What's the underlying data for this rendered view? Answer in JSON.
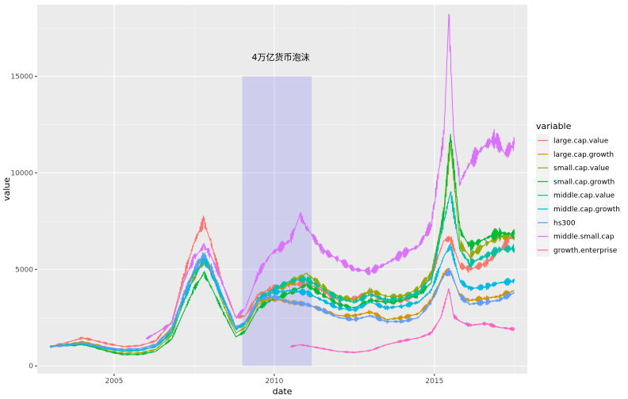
{
  "chart_data": {
    "type": "line",
    "xlabel": "date",
    "ylabel": "value",
    "xlim": [
      2002.6,
      2017.9
    ],
    "ylim": [
      -400,
      18700
    ],
    "x_ticks": [
      2005,
      2010,
      2015
    ],
    "x_tick_labels": [
      "2005",
      "2010",
      "2015"
    ],
    "y_ticks": [
      0,
      5000,
      10000,
      15000
    ],
    "y_tick_labels": [
      "0",
      "5000",
      "10000",
      "15000"
    ],
    "grid": true,
    "legend": {
      "title": "variable",
      "position": "right"
    },
    "annotation": {
      "text": "4万亿货币泡沫",
      "x": 2010.2,
      "y": 16000,
      "rect": {
        "x0": 2009.0,
        "x1": 2011.17,
        "y0": 0,
        "y1": 15000,
        "color": "#5b5bef"
      }
    },
    "series": [
      {
        "name": "large.cap.value",
        "color": "#F8766D",
        "x": [
          2003.0,
          2003.5,
          2004.0,
          2004.3,
          2004.8,
          2005.3,
          2005.8,
          2006.3,
          2006.8,
          2007.2,
          2007.5,
          2007.8,
          2008.0,
          2008.4,
          2008.8,
          2009.1,
          2009.5,
          2009.9,
          2010.5,
          2011.0,
          2011.5,
          2012.0,
          2012.5,
          2013.0,
          2013.5,
          2014.0,
          2014.5,
          2014.9,
          2015.3,
          2015.5,
          2015.8,
          2016.1,
          2016.6,
          2017.0,
          2017.5
        ],
        "y": [
          1000,
          1200,
          1450,
          1350,
          1150,
          1000,
          1050,
          1300,
          2300,
          4800,
          6400,
          7500,
          6500,
          4200,
          2500,
          2600,
          3700,
          4000,
          4200,
          4300,
          3900,
          3400,
          3500,
          3800,
          3300,
          3400,
          3700,
          4700,
          6500,
          6600,
          5200,
          5000,
          5300,
          5900,
          6900
        ]
      },
      {
        "name": "large.cap.growth",
        "color": "#D39200",
        "x": [
          2003.0,
          2003.5,
          2004.0,
          2004.3,
          2004.8,
          2005.3,
          2005.8,
          2006.3,
          2006.8,
          2007.2,
          2007.5,
          2007.8,
          2008.0,
          2008.4,
          2008.8,
          2009.1,
          2009.5,
          2009.9,
          2010.5,
          2011.0,
          2011.5,
          2012.0,
          2012.5,
          2013.0,
          2013.5,
          2014.0,
          2014.5,
          2014.9,
          2015.3,
          2015.5,
          2015.8,
          2016.1,
          2016.6,
          2017.0,
          2017.5
        ],
        "y": [
          1000,
          1100,
          1250,
          1150,
          950,
          850,
          900,
          1100,
          1900,
          3700,
          4800,
          5400,
          5000,
          3500,
          2000,
          2200,
          3200,
          3500,
          3300,
          3200,
          2900,
          2600,
          2600,
          2800,
          2400,
          2500,
          2700,
          3400,
          4800,
          4900,
          3600,
          3400,
          3500,
          3600,
          3900
        ]
      },
      {
        "name": "small.cap.value",
        "color": "#93AA00",
        "x": [
          2003.0,
          2003.5,
          2004.0,
          2004.3,
          2004.8,
          2005.3,
          2005.8,
          2006.3,
          2006.8,
          2007.2,
          2007.5,
          2007.8,
          2008.0,
          2008.4,
          2008.8,
          2009.1,
          2009.5,
          2009.9,
          2010.5,
          2011.0,
          2011.5,
          2012.0,
          2012.5,
          2013.0,
          2013.5,
          2014.0,
          2014.5,
          2014.9,
          2015.3,
          2015.5,
          2015.8,
          2016.1,
          2016.6,
          2017.0,
          2017.5
        ],
        "y": [
          1000,
          1080,
          1150,
          1050,
          800,
          650,
          680,
          850,
          1600,
          3500,
          4600,
          5600,
          5000,
          3200,
          1700,
          2000,
          3300,
          3800,
          4300,
          4800,
          4100,
          3600,
          3400,
          3900,
          3600,
          3600,
          4000,
          4800,
          8000,
          11500,
          6300,
          5700,
          6300,
          6700,
          6700
        ]
      },
      {
        "name": "small.cap.growth",
        "color": "#00BA38",
        "x": [
          2003.0,
          2003.5,
          2004.0,
          2004.3,
          2004.8,
          2005.3,
          2005.8,
          2006.3,
          2006.8,
          2007.2,
          2007.5,
          2007.8,
          2008.0,
          2008.4,
          2008.8,
          2009.1,
          2009.5,
          2009.9,
          2010.5,
          2011.0,
          2011.5,
          2012.0,
          2012.5,
          2013.0,
          2013.5,
          2014.0,
          2014.5,
          2014.9,
          2015.3,
          2015.5,
          2015.8,
          2016.1,
          2016.6,
          2017.0,
          2017.5
        ],
        "y": [
          1000,
          1050,
          1100,
          1000,
          750,
          580,
          600,
          750,
          1400,
          2900,
          4000,
          4800,
          4200,
          2800,
          1500,
          1800,
          3000,
          3400,
          3800,
          4200,
          3700,
          3200,
          3000,
          3400,
          3300,
          3400,
          3700,
          4300,
          8000,
          12000,
          7000,
          6200,
          6600,
          6900,
          6800
        ]
      },
      {
        "name": "middle.cap.value",
        "color": "#00C19F",
        "x": [
          2003.0,
          2003.5,
          2004.0,
          2004.3,
          2004.8,
          2005.3,
          2005.8,
          2006.3,
          2006.8,
          2007.2,
          2007.5,
          2007.8,
          2008.0,
          2008.4,
          2008.8,
          2009.1,
          2009.5,
          2009.9,
          2010.5,
          2011.0,
          2011.5,
          2012.0,
          2012.5,
          2013.0,
          2013.5,
          2014.0,
          2014.5,
          2014.9,
          2015.3,
          2015.5,
          2015.8,
          2016.1,
          2016.6,
          2017.0,
          2017.5
        ],
        "y": [
          1000,
          1100,
          1200,
          1100,
          900,
          780,
          820,
          1000,
          1800,
          3800,
          4900,
          5700,
          5100,
          3500,
          1900,
          2200,
          3500,
          3900,
          4400,
          4500,
          4000,
          3500,
          3300,
          3700,
          3400,
          3500,
          3800,
          4600,
          7500,
          9000,
          6000,
          5300,
          5700,
          6000,
          6100
        ]
      },
      {
        "name": "middle.cap.growth",
        "color": "#00B9E3",
        "x": [
          2003.0,
          2003.5,
          2004.0,
          2004.3,
          2004.8,
          2005.3,
          2005.8,
          2006.3,
          2006.8,
          2007.2,
          2007.5,
          2007.8,
          2008.0,
          2008.4,
          2008.8,
          2009.1,
          2009.5,
          2009.9,
          2010.5,
          2011.0,
          2011.5,
          2012.0,
          2012.5,
          2013.0,
          2013.5,
          2014.0,
          2014.5,
          2014.9,
          2015.3,
          2015.5,
          2015.8,
          2016.1,
          2016.6,
          2017.0,
          2017.5
        ],
        "y": [
          1000,
          1080,
          1150,
          1050,
          880,
          760,
          800,
          1000,
          1700,
          3500,
          4600,
          5500,
          4900,
          3400,
          1900,
          2200,
          3400,
          3800,
          3900,
          3800,
          3400,
          3000,
          2900,
          3300,
          3000,
          3100,
          3300,
          3900,
          5700,
          6200,
          4400,
          4000,
          4100,
          4300,
          4400
        ]
      },
      {
        "name": "hs300",
        "color": "#619CFF",
        "x": [
          2003.0,
          2003.5,
          2004.0,
          2004.3,
          2004.8,
          2005.3,
          2005.8,
          2006.3,
          2006.8,
          2007.2,
          2007.5,
          2007.8,
          2008.0,
          2008.4,
          2008.8,
          2009.1,
          2009.5,
          2009.9,
          2010.5,
          2011.0,
          2011.5,
          2012.0,
          2012.5,
          2013.0,
          2013.5,
          2014.0,
          2014.5,
          2014.9,
          2015.3,
          2015.5,
          2015.8,
          2016.1,
          2016.6,
          2017.0,
          2017.5
        ],
        "y": [
          1000,
          1050,
          1200,
          1100,
          950,
          850,
          900,
          1100,
          2000,
          3800,
          5000,
          5800,
          5200,
          3600,
          2000,
          2300,
          3400,
          3600,
          3300,
          3200,
          2900,
          2500,
          2400,
          2600,
          2300,
          2300,
          2500,
          3300,
          4700,
          4900,
          3600,
          3200,
          3300,
          3400,
          3800
        ]
      },
      {
        "name": "middle.small.cap",
        "color": "#DB72FB",
        "x": [
          2006.0,
          2006.3,
          2006.8,
          2007.2,
          2007.5,
          2007.8,
          2008.0,
          2008.4,
          2008.8,
          2009.1,
          2009.5,
          2009.9,
          2010.5,
          2010.8,
          2011.0,
          2011.5,
          2012.0,
          2012.5,
          2013.0,
          2013.5,
          2014.0,
          2014.5,
          2014.9,
          2015.0,
          2015.3,
          2015.45,
          2015.6,
          2015.8,
          2016.1,
          2016.5,
          2016.9,
          2017.2,
          2017.5
        ],
        "y": [
          1400,
          1700,
          2200,
          4500,
          5600,
          6200,
          5800,
          4200,
          2500,
          3000,
          4800,
          5800,
          6500,
          7800,
          7200,
          6000,
          5500,
          5000,
          4900,
          5300,
          5800,
          6200,
          7300,
          8500,
          12000,
          18200,
          12000,
          9500,
          10500,
          11300,
          11800,
          11000,
          11500
        ]
      },
      {
        "name": "growth.enterprise",
        "color": "#FF61C3",
        "x": [
          2010.5,
          2010.8,
          2011.0,
          2011.5,
          2012.0,
          2012.5,
          2013.0,
          2013.5,
          2014.0,
          2014.5,
          2014.9,
          2015.2,
          2015.45,
          2015.6,
          2015.8,
          2016.1,
          2016.6,
          2017.0,
          2017.5
        ],
        "y": [
          1000,
          1100,
          1050,
          900,
          750,
          700,
          800,
          1100,
          1300,
          1450,
          1700,
          2500,
          4000,
          2600,
          2300,
          2100,
          2200,
          2000,
          1900
        ]
      }
    ]
  }
}
